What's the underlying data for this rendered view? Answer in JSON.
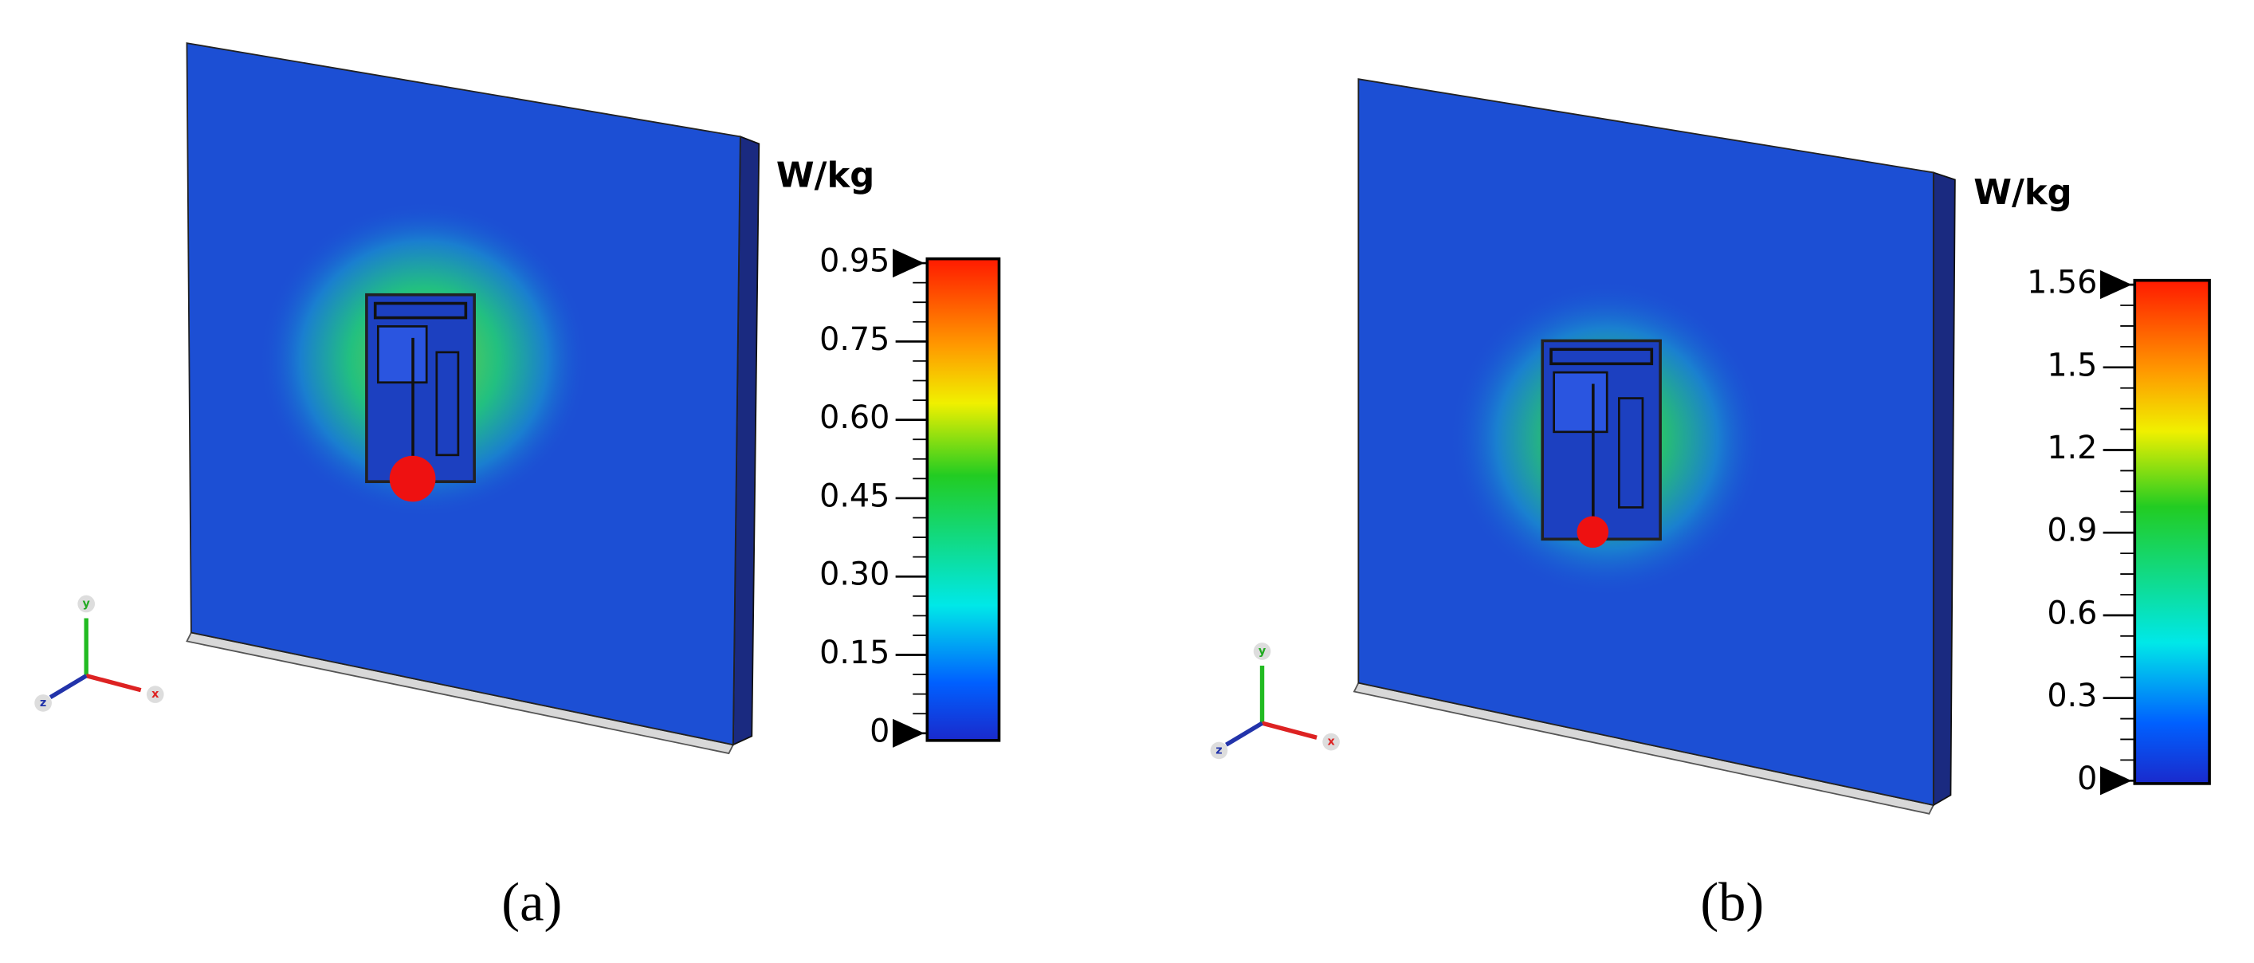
{
  "panels": [
    {
      "unit": "W/kg",
      "ticks": [
        "0.95",
        "0.75",
        "0.60",
        "0.45",
        "0.30",
        "0.15",
        "0"
      ],
      "caption": "(a)",
      "axes": {
        "x": "x",
        "y": "y",
        "z": "z"
      }
    },
    {
      "unit": "W/kg",
      "ticks": [
        "1.56",
        "1.5",
        "1.2",
        "0.9",
        "0.6",
        "0.3",
        "0"
      ],
      "caption": "(b)",
      "axes": {
        "x": "x",
        "y": "y",
        "z": "z"
      }
    }
  ]
}
